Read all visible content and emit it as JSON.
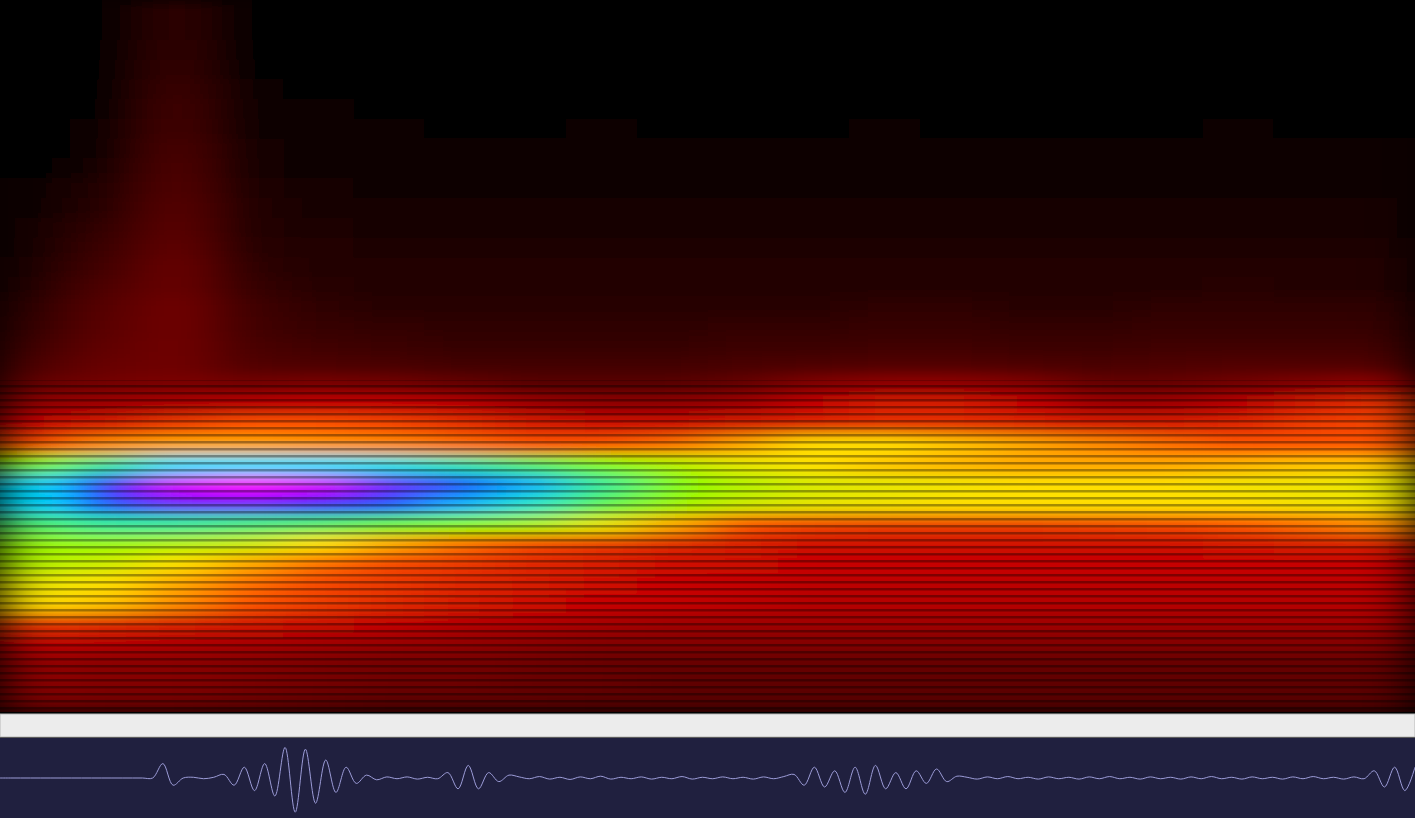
{
  "chart_data": [
    {
      "type": "heatmap",
      "tick_labels": false,
      "color_range": [
        0,
        1
      ],
      "cells": [
        [
          0,
          0,
          0.1,
          0,
          0,
          0,
          0,
          0,
          0,
          0,
          0,
          0,
          0,
          0,
          0,
          0,
          0,
          0,
          0,
          0
        ],
        [
          0,
          0,
          0.1,
          0,
          0,
          0,
          0,
          0,
          0,
          0,
          0,
          0,
          0,
          0,
          0,
          0,
          0,
          0,
          0,
          0
        ],
        [
          0,
          0,
          0.11,
          0,
          0,
          0,
          0,
          0,
          0,
          0,
          0,
          0,
          0,
          0,
          0,
          0,
          0,
          0,
          0,
          0
        ],
        [
          0,
          0,
          0.12,
          0.01,
          0.01,
          0,
          0,
          0,
          0,
          0,
          0,
          0,
          0,
          0,
          0,
          0,
          0,
          0,
          0,
          0
        ],
        [
          0,
          0,
          0.13,
          0.02,
          0.01,
          0,
          0,
          0,
          0.01,
          0,
          0,
          0,
          0,
          0,
          0,
          0,
          0,
          0,
          0,
          0
        ],
        [
          0,
          0.01,
          0.14,
          0.02,
          0.02,
          0.01,
          0.01,
          0.01,
          0.01,
          0.01,
          0.01,
          0.01,
          0.01,
          0.01,
          0.01,
          0.01,
          0.01,
          0.01,
          0.01,
          0.01
        ],
        [
          0,
          0.02,
          0.15,
          0.03,
          0.02,
          0.02,
          0.01,
          0.01,
          0.02,
          0.01,
          0.01,
          0.01,
          0.02,
          0.01,
          0.01,
          0.01,
          0.01,
          0.02,
          0.01,
          0.01
        ],
        [
          0.01,
          0.03,
          0.16,
          0.04,
          0.03,
          0.02,
          0.02,
          0.02,
          0.02,
          0.02,
          0.02,
          0.02,
          0.02,
          0.02,
          0.02,
          0.02,
          0.02,
          0.02,
          0.02,
          0.02
        ],
        [
          0.01,
          0.05,
          0.17,
          0.05,
          0.03,
          0.03,
          0.02,
          0.02,
          0.03,
          0.02,
          0.02,
          0.02,
          0.03,
          0.02,
          0.02,
          0.03,
          0.02,
          0.02,
          0.03,
          0.02
        ],
        [
          0.02,
          0.07,
          0.18,
          0.06,
          0.04,
          0.03,
          0.03,
          0.03,
          0.03,
          0.03,
          0.03,
          0.03,
          0.03,
          0.03,
          0.03,
          0.03,
          0.03,
          0.03,
          0.03,
          0.03
        ],
        [
          0.03,
          0.09,
          0.19,
          0.07,
          0.05,
          0.04,
          0.04,
          0.04,
          0.04,
          0.04,
          0.04,
          0.04,
          0.04,
          0.05,
          0.04,
          0.04,
          0.04,
          0.05,
          0.04,
          0.04
        ],
        [
          0.04,
          0.11,
          0.2,
          0.08,
          0.06,
          0.05,
          0.05,
          0.05,
          0.05,
          0.05,
          0.05,
          0.05,
          0.05,
          0.05,
          0.05,
          0.05,
          0.05,
          0.05,
          0.05,
          0.05
        ],
        [
          0.05,
          0.13,
          0.21,
          0.09,
          0.07,
          0.06,
          0.06,
          0.06,
          0.06,
          0.06,
          0.06,
          0.06,
          0.06,
          0.06,
          0.06,
          0.06,
          0.06,
          0.06,
          0.06,
          0.06
        ],
        [
          0.06,
          0.15,
          0.22,
          0.1,
          0.08,
          0.07,
          0.07,
          0.07,
          0.07,
          0.07,
          0.07,
          0.07,
          0.07,
          0.07,
          0.07,
          0.07,
          0.07,
          0.07,
          0.07,
          0.07
        ],
        [
          0.08,
          0.17,
          0.22,
          0.12,
          0.09,
          0.08,
          0.08,
          0.08,
          0.08,
          0.08,
          0.08,
          0.08,
          0.08,
          0.08,
          0.08,
          0.08,
          0.08,
          0.09,
          0.08,
          0.08
        ],
        [
          0.1,
          0.19,
          0.23,
          0.14,
          0.1,
          0.09,
          0.09,
          0.09,
          0.09,
          0.09,
          0.09,
          0.09,
          0.1,
          0.1,
          0.09,
          0.09,
          0.1,
          0.1,
          0.1,
          0.1
        ],
        [
          0.12,
          0.2,
          0.23,
          0.15,
          0.12,
          0.11,
          0.1,
          0.1,
          0.1,
          0.1,
          0.11,
          0.11,
          0.12,
          0.12,
          0.11,
          0.11,
          0.12,
          0.12,
          0.12,
          0.12
        ],
        [
          0.14,
          0.21,
          0.23,
          0.16,
          0.14,
          0.13,
          0.12,
          0.12,
          0.12,
          0.12,
          0.13,
          0.13,
          0.14,
          0.14,
          0.13,
          0.13,
          0.14,
          0.14,
          0.14,
          0.14
        ],
        [
          0.17,
          0.22,
          0.23,
          0.18,
          0.17,
          0.16,
          0.15,
          0.15,
          0.15,
          0.15,
          0.16,
          0.17,
          0.18,
          0.18,
          0.17,
          0.16,
          0.17,
          0.18,
          0.18,
          0.18
        ],
        [
          0.22,
          0.24,
          0.25,
          0.24,
          0.25,
          0.24,
          0.22,
          0.2,
          0.2,
          0.2,
          0.22,
          0.26,
          0.28,
          0.28,
          0.26,
          0.22,
          0.22,
          0.24,
          0.26,
          0.28
        ],
        [
          0.28,
          0.3,
          0.32,
          0.34,
          0.36,
          0.36,
          0.34,
          0.3,
          0.28,
          0.28,
          0.3,
          0.36,
          0.4,
          0.4,
          0.36,
          0.3,
          0.3,
          0.34,
          0.4,
          0.44
        ],
        [
          0.36,
          0.4,
          0.46,
          0.5,
          0.5,
          0.48,
          0.44,
          0.4,
          0.38,
          0.38,
          0.4,
          0.42,
          0.44,
          0.44,
          0.42,
          0.4,
          0.4,
          0.42,
          0.46,
          0.48
        ],
        [
          0.48,
          0.54,
          0.56,
          0.56,
          0.55,
          0.54,
          0.52,
          0.5,
          0.5,
          0.52,
          0.56,
          0.6,
          0.6,
          0.58,
          0.56,
          0.54,
          0.52,
          0.5,
          0.5,
          0.5
        ],
        [
          0.7,
          0.76,
          0.8,
          0.8,
          0.8,
          0.79,
          0.77,
          0.74,
          0.7,
          0.66,
          0.62,
          0.6,
          0.58,
          0.57,
          0.56,
          0.56,
          0.56,
          0.57,
          0.58,
          0.58
        ],
        [
          0.8,
          0.88,
          0.93,
          0.94,
          0.93,
          0.9,
          0.86,
          0.82,
          0.76,
          0.7,
          0.66,
          0.63,
          0.62,
          0.61,
          0.6,
          0.6,
          0.6,
          0.61,
          0.61,
          0.62
        ],
        [
          0.8,
          0.86,
          0.9,
          0.9,
          0.89,
          0.86,
          0.82,
          0.78,
          0.73,
          0.68,
          0.64,
          0.62,
          0.61,
          0.6,
          0.6,
          0.6,
          0.6,
          0.6,
          0.61,
          0.61
        ],
        [
          0.74,
          0.76,
          0.76,
          0.75,
          0.74,
          0.72,
          0.7,
          0.67,
          0.62,
          0.56,
          0.5,
          0.47,
          0.46,
          0.46,
          0.46,
          0.47,
          0.48,
          0.5,
          0.52,
          0.54
        ],
        [
          0.68,
          0.68,
          0.66,
          0.64,
          0.6,
          0.56,
          0.52,
          0.48,
          0.45,
          0.42,
          0.4,
          0.38,
          0.38,
          0.38,
          0.38,
          0.38,
          0.38,
          0.39,
          0.4,
          0.4
        ],
        [
          0.66,
          0.64,
          0.6,
          0.56,
          0.52,
          0.48,
          0.45,
          0.42,
          0.4,
          0.38,
          0.37,
          0.36,
          0.36,
          0.36,
          0.36,
          0.36,
          0.36,
          0.36,
          0.36,
          0.36
        ],
        [
          0.62,
          0.6,
          0.56,
          0.52,
          0.48,
          0.45,
          0.42,
          0.4,
          0.38,
          0.36,
          0.35,
          0.34,
          0.34,
          0.34,
          0.34,
          0.34,
          0.34,
          0.34,
          0.34,
          0.34
        ],
        [
          0.6,
          0.58,
          0.54,
          0.5,
          0.46,
          0.43,
          0.4,
          0.38,
          0.36,
          0.35,
          0.34,
          0.33,
          0.33,
          0.33,
          0.33,
          0.33,
          0.33,
          0.33,
          0.33,
          0.33
        ],
        [
          0.45,
          0.43,
          0.41,
          0.39,
          0.37,
          0.35,
          0.33,
          0.32,
          0.31,
          0.3,
          0.3,
          0.3,
          0.3,
          0.3,
          0.3,
          0.3,
          0.3,
          0.3,
          0.3,
          0.3
        ],
        [
          0.34,
          0.33,
          0.32,
          0.31,
          0.3,
          0.29,
          0.28,
          0.27,
          0.26,
          0.26,
          0.26,
          0.26,
          0.26,
          0.26,
          0.26,
          0.26,
          0.26,
          0.26,
          0.26,
          0.26
        ],
        [
          0.28,
          0.27,
          0.27,
          0.26,
          0.25,
          0.24,
          0.24,
          0.23,
          0.22,
          0.22,
          0.22,
          0.22,
          0.22,
          0.22,
          0.22,
          0.22,
          0.22,
          0.22,
          0.22,
          0.22
        ],
        [
          0.27,
          0.26,
          0.26,
          0.25,
          0.24,
          0.23,
          0.23,
          0.22,
          0.22,
          0.21,
          0.21,
          0.21,
          0.21,
          0.21,
          0.21,
          0.21,
          0.21,
          0.21,
          0.21,
          0.21
        ],
        [
          0.24,
          0.23,
          0.23,
          0.22,
          0.21,
          0.2,
          0.2,
          0.2,
          0.19,
          0.19,
          0.19,
          0.19,
          0.19,
          0.19,
          0.19,
          0.19,
          0.19,
          0.19,
          0.19,
          0.19
        ]
      ]
    },
    {
      "type": "line",
      "tick_labels": false,
      "color": "#9c9cd8",
      "xlim": [
        0,
        139
      ],
      "ylim": [
        -1,
        1
      ],
      "x": [
        0,
        1,
        2,
        3,
        4,
        5,
        6,
        7,
        8,
        9,
        10,
        11,
        12,
        13,
        14,
        15,
        16,
        17,
        18,
        19,
        20,
        21,
        22,
        23,
        24,
        25,
        26,
        27,
        28,
        29,
        30,
        31,
        32,
        33,
        34,
        35,
        36,
        37,
        38,
        39,
        40,
        41,
        42,
        43,
        44,
        45,
        46,
        47,
        48,
        49,
        50,
        51,
        52,
        53,
        54,
        55,
        56,
        57,
        58,
        59,
        60,
        61,
        62,
        63,
        64,
        65,
        66,
        67,
        68,
        69,
        70,
        71,
        72,
        73,
        74,
        75,
        76,
        77,
        78,
        79,
        80,
        81,
        82,
        83,
        84,
        85,
        86,
        87,
        88,
        89,
        90,
        91,
        92,
        93,
        94,
        95,
        96,
        97,
        98,
        99,
        100,
        101,
        102,
        103,
        104,
        105,
        106,
        107,
        108,
        109,
        110,
        111,
        112,
        113,
        114,
        115,
        116,
        117,
        118,
        119,
        120,
        121,
        122,
        123,
        124,
        125,
        126,
        127,
        128,
        129,
        130,
        131,
        132,
        133,
        134,
        135,
        136,
        137,
        138,
        139
      ],
      "values": [
        0,
        0,
        0,
        0,
        0,
        0,
        0,
        0,
        0,
        0,
        0,
        0,
        0,
        0,
        0,
        0,
        0.4,
        -0.2,
        0,
        0.02,
        -0.02,
        0.02,
        0.1,
        -0.2,
        0.3,
        -0.35,
        0.4,
        -0.5,
        0.85,
        -0.95,
        0.8,
        -0.7,
        0.5,
        -0.4,
        0.3,
        -0.15,
        0.08,
        -0.05,
        0.03,
        -0.02,
        0.03,
        -0.03,
        0.02,
        -0.02,
        0.15,
        -0.3,
        0.35,
        -0.3,
        0.15,
        -0.1,
        0.08,
        0.03,
        -0.02,
        0.04,
        -0.03,
        0.02,
        -0.04,
        0.03,
        -0.02,
        0.05,
        -0.03,
        0.02,
        -0.02,
        0.03,
        -0.03,
        0.02,
        -0.02,
        0.04,
        -0.03,
        0.02,
        -0.02,
        0.03,
        -0.02,
        0.02,
        -0.03,
        0.03,
        -0.02,
        0.04,
        0.1,
        -0.2,
        0.3,
        -0.25,
        0.2,
        -0.4,
        0.3,
        -0.45,
        0.35,
        -0.3,
        0.15,
        -0.3,
        0.2,
        -0.15,
        0.25,
        -0.1,
        0.05,
        0.02,
        -0.03,
        0.03,
        -0.02,
        0.04,
        -0.02,
        0.02,
        -0.03,
        0.03,
        -0.02,
        0.02,
        -0.03,
        0.03,
        -0.02,
        0.04,
        -0.02,
        0.02,
        -0.03,
        0.03,
        -0.02,
        0.02,
        -0.03,
        0.03,
        -0.02,
        0.04,
        -0.02,
        0.02,
        -0.03,
        0.03,
        -0.02,
        0.02,
        -0.03,
        0.03,
        -0.02,
        0.04,
        -0.02,
        0.02,
        -0.03,
        0.03,
        -0.02,
        0.2,
        -0.25,
        0.3,
        -0.35,
        0.3
      ]
    }
  ]
}
